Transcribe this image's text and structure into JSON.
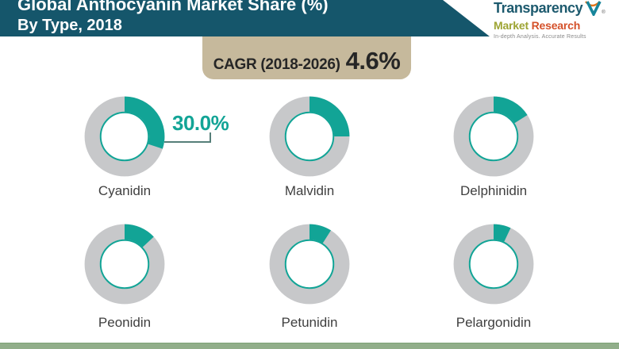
{
  "header": {
    "title_line1": "Global Anthocyanin Market Share (%)",
    "title_line2": "By Type, 2018",
    "bg_color": "#15566b"
  },
  "logo": {
    "brand_top": "Transparency",
    "brand_bottom_1": "Market",
    "brand_bottom_2": "Research",
    "tagline": "In-depth Analysis. Accurate Results",
    "registered_mark": "®"
  },
  "badge": {
    "label": "CAGR (2018-2026)",
    "value": "4.6%",
    "bg_color": "#c6b99c"
  },
  "callout": {
    "value": "30.0%",
    "target": "Cyanidin"
  },
  "chart_data": {
    "type": "pie",
    "subtype": "donut-grid",
    "title": "Global Anthocyanin Market Share (%)",
    "subtitle": "By Type, 2018",
    "units": "%",
    "categories": [
      "Cyanidin",
      "Malvidin",
      "Delphinidin",
      "Peonidin",
      "Petunidin",
      "Pelargonidin"
    ],
    "values": [
      30.0,
      25,
      16,
      13,
      9,
      7
    ],
    "value_labels_shown": [
      "30.0%"
    ],
    "note": "Only the Cyanidin slice is labeled (30.0%); remaining values estimated from arc angles",
    "legend": "none",
    "cagr": {
      "label": "CAGR (2018-2026)",
      "value": "4.6%"
    },
    "colors": {
      "segment": "#12a496",
      "remainder": "#c7c8ca",
      "hole_ring": "#12a496"
    }
  },
  "footer": {
    "bar_color": "#91ae8a"
  }
}
